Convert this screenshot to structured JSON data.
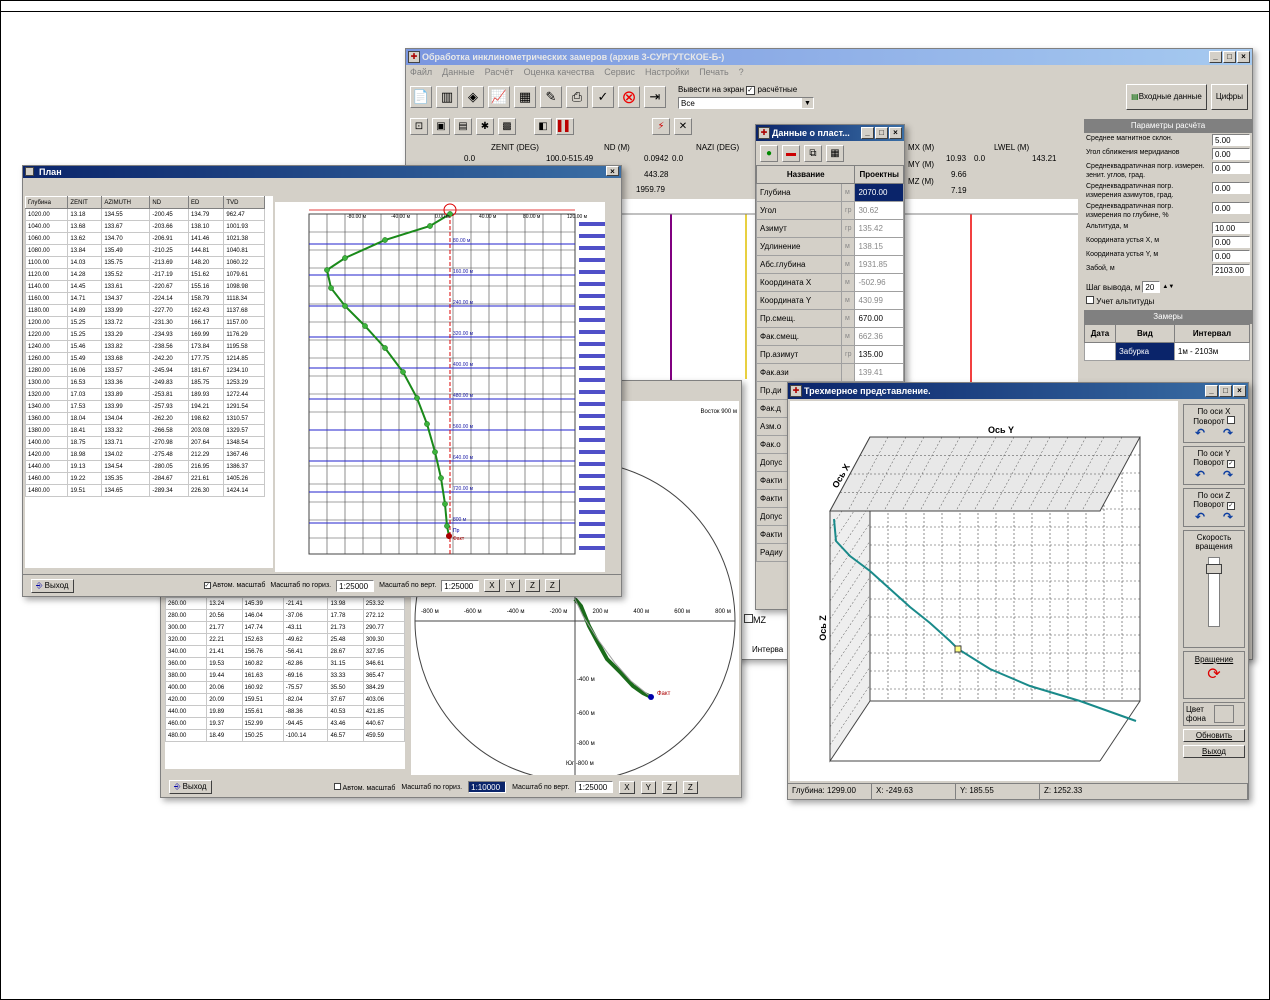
{
  "main_window": {
    "title": "Обработка инклинометрических замеров (архив 3-СУРГУТСКОЕ-Б-)",
    "menu": [
      "Файл",
      "Данные",
      "Расчёт",
      "Оценка качества",
      "Сервис",
      "Настройки",
      "Печать",
      "?"
    ],
    "output_label": "Вывести на экран",
    "calculated_label": "расчётные",
    "select_value": "Все",
    "input_data_button": "Входные данные",
    "digits_button": "Цифры",
    "tracks": [
      {
        "name": "ZENIT (DEG)",
        "min": "0.0",
        "max": "100.0"
      },
      {
        "name": "ND (M)",
        "min": "-515.49",
        "max": "0.0942"
      },
      {
        "name": "NAZI (DEG)",
        "min": "0.0",
        "max": ""
      },
      {
        "name": "MX (M)",
        "min": "",
        "max": "10.93"
      },
      {
        "name": "MY (M)",
        "min": "",
        "max": "9.66"
      },
      {
        "name": "MZ (M)",
        "min": "",
        "max": "7.19"
      },
      {
        "name": "LWEL (M)",
        "min": "0.0",
        "max": "143.21"
      }
    ],
    "nd_values": [
      "443.28",
      "1959.79"
    ],
    "params_title": "Параметры расчёта",
    "params": [
      {
        "label": "Среднее магнитное склон.",
        "value": "5.00"
      },
      {
        "label": "Угол сближения меридианов",
        "value": "0.00"
      },
      {
        "label": "Среднеквадратичная погр. измерен. зенит. углов, град.",
        "value": "0.00"
      },
      {
        "label": "Среднеквадратичная погр. измерения азимутов, град.",
        "value": "0.00"
      },
      {
        "label": "Среднеквадратичная погр. измерения по глубине, %",
        "value": "0.00"
      },
      {
        "label": "Альтитуда, м",
        "value": "10.00"
      },
      {
        "label": "Координата устья X, м",
        "value": "0.00"
      },
      {
        "label": "Координата устья Y, м",
        "value": "0.00"
      },
      {
        "label": "Забой, м",
        "value": "2103.00"
      }
    ],
    "step_label": "Шаг вывода, м",
    "step_value": "20",
    "altitude_check": "Учет альтитуды",
    "measurements_title": "Замеры",
    "meas_headers": [
      "Дата",
      "Вид",
      "Интервал"
    ],
    "meas_row": [
      "",
      "Забурка",
      "1м - 2103м"
    ],
    "mz_label": "MZ",
    "interval_label": "Интерва"
  },
  "data_window": {
    "title": "Данные о пласт...",
    "headers": [
      "Название",
      "Проектны"
    ],
    "rows": [
      {
        "name": "Глубина",
        "unit": "м",
        "value": "2070.00"
      },
      {
        "name": "Угол",
        "unit": "гр",
        "value": "30.62"
      },
      {
        "name": "Азимут",
        "unit": "гр",
        "value": "135.42"
      },
      {
        "name": "Удлинение",
        "unit": "м",
        "value": "138.15"
      },
      {
        "name": "Абс.глубина",
        "unit": "м",
        "value": "1931.85"
      },
      {
        "name": "Координата X",
        "unit": "м",
        "value": "-502.96"
      },
      {
        "name": "Координата Y",
        "unit": "м",
        "value": "430.99"
      },
      {
        "name": "Пр.смещ.",
        "unit": "м",
        "value": "670.00"
      },
      {
        "name": "Фак.смещ.",
        "unit": "м",
        "value": "662.36"
      },
      {
        "name": "Пр.азимут",
        "unit": "гр",
        "value": "135.00"
      },
      {
        "name": "Фак.ази",
        "unit": "",
        "value": "139.41"
      },
      {
        "name": "Пр.ди",
        "unit": "",
        "value": ""
      },
      {
        "name": "Фак.д",
        "unit": "",
        "value": ""
      },
      {
        "name": "Азм.о",
        "unit": "",
        "value": ""
      },
      {
        "name": "Фак.о",
        "unit": "",
        "value": ""
      },
      {
        "name": "Допус",
        "unit": "",
        "value": ""
      },
      {
        "name": "Факти",
        "unit": "",
        "value": ""
      },
      {
        "name": "Факти",
        "unit": "",
        "value": ""
      },
      {
        "name": "Допус",
        "unit": "",
        "value": ""
      },
      {
        "name": "Факти",
        "unit": "",
        "value": ""
      },
      {
        "name": "Радиу",
        "unit": "",
        "value": ""
      }
    ]
  },
  "plan_window": {
    "title": "План",
    "headers": [
      "Глубина",
      "ZENIT",
      "AZIMUTH",
      "ND",
      "ED",
      "TVD"
    ],
    "rows": [
      [
        "1020.00",
        "13.18",
        "134.55",
        "-200.45",
        "134.79",
        "962.47"
      ],
      [
        "1040.00",
        "13.68",
        "133.67",
        "-203.66",
        "138.10",
        "1001.93"
      ],
      [
        "1060.00",
        "13.62",
        "134.70",
        "-206.91",
        "141.46",
        "1021.38"
      ],
      [
        "1080.00",
        "13.84",
        "135.49",
        "-210.25",
        "144.81",
        "1040.81"
      ],
      [
        "1100.00",
        "14.03",
        "135.75",
        "-213.69",
        "148.20",
        "1060.22"
      ],
      [
        "1120.00",
        "14.28",
        "135.52",
        "-217.19",
        "151.62",
        "1079.61"
      ],
      [
        "1140.00",
        "14.45",
        "133.61",
        "-220.67",
        "155.16",
        "1098.98"
      ],
      [
        "1160.00",
        "14.71",
        "134.37",
        "-224.14",
        "158.79",
        "1118.34"
      ],
      [
        "1180.00",
        "14.89",
        "133.99",
        "-227.70",
        "162.43",
        "1137.68"
      ],
      [
        "1200.00",
        "15.25",
        "133.72",
        "-231.30",
        "166.17",
        "1157.00"
      ],
      [
        "1220.00",
        "15.25",
        "133.29",
        "-234.93",
        "169.99",
        "1176.29"
      ],
      [
        "1240.00",
        "15.46",
        "133.82",
        "-238.56",
        "173.84",
        "1195.58"
      ],
      [
        "1260.00",
        "15.49",
        "133.68",
        "-242.20",
        "177.75",
        "1214.85"
      ],
      [
        "1280.00",
        "16.06",
        "133.57",
        "-245.94",
        "181.67",
        "1234.10"
      ],
      [
        "1300.00",
        "16.53",
        "133.36",
        "-249.83",
        "185.75",
        "1253.29"
      ],
      [
        "1320.00",
        "17.03",
        "133.89",
        "-253.81",
        "189.93",
        "1272.44"
      ],
      [
        "1340.00",
        "17.53",
        "133.99",
        "-257.93",
        "194.21",
        "1291.54"
      ],
      [
        "1360.00",
        "18.04",
        "134.04",
        "-262.20",
        "198.62",
        "1310.57"
      ],
      [
        "1380.00",
        "18.41",
        "133.32",
        "-266.58",
        "203.08",
        "1329.57"
      ],
      [
        "1400.00",
        "18.75",
        "133.71",
        "-270.98",
        "207.64",
        "1348.54"
      ],
      [
        "1420.00",
        "18.98",
        "134.02",
        "-275.48",
        "212.29",
        "1367.46"
      ],
      [
        "1440.00",
        "19.13",
        "134.54",
        "-280.05",
        "216.95",
        "1386.37"
      ],
      [
        "1460.00",
        "19.22",
        "135.35",
        "-284.67",
        "221.61",
        "1405.26"
      ],
      [
        "1480.00",
        "19.51",
        "134.65",
        "-289.34",
        "226.30",
        "1424.14"
      ]
    ],
    "exit_button": "Выход",
    "auto_scale": "Автом. масштаб",
    "hscale_label": "Масштаб по гориз.",
    "hscale_value": "1:25000",
    "vscale_label": "Масштаб по верт.",
    "vscale_value": "1:25000",
    "axis_top": [
      "-80.00 м",
      "-40.00 м",
      "0.00 м",
      "40.00 м",
      "80.00 м",
      "120.00 м"
    ],
    "depth_ticks": [
      "80.00 м",
      "160.00 м",
      "240.00 м",
      "320.00 м",
      "400.00 м",
      "480.00 м",
      "560.00 м",
      "640.00 м",
      "720.00 м",
      "800 м"
    ],
    "pr_label": "Пр",
    "fakt_label": "Факт"
  },
  "polar_window": {
    "headers": [],
    "rows": [
      [
        "260.00",
        "13.24",
        "145.39",
        "-21.41",
        "13.98",
        "253.32"
      ],
      [
        "280.00",
        "20.56",
        "146.04",
        "-37.06",
        "17.78",
        "272.12"
      ],
      [
        "300.00",
        "21.77",
        "147.74",
        "-43.11",
        "21.73",
        "290.77"
      ],
      [
        "320.00",
        "22.21",
        "152.63",
        "-49.62",
        "25.48",
        "309.30"
      ],
      [
        "340.00",
        "21.41",
        "156.76",
        "-56.41",
        "28.67",
        "327.95"
      ],
      [
        "360.00",
        "19.53",
        "160.82",
        "-62.86",
        "31.15",
        "346.61"
      ],
      [
        "380.00",
        "19.44",
        "161.63",
        "-69.16",
        "33.33",
        "365.47"
      ],
      [
        "400.00",
        "20.06",
        "160.92",
        "-75.57",
        "35.50",
        "384.29"
      ],
      [
        "420.00",
        "20.09",
        "159.51",
        "-82.04",
        "37.67",
        "403.06"
      ],
      [
        "440.00",
        "19.89",
        "155.61",
        "-88.36",
        "40.53",
        "421.85"
      ],
      [
        "460.00",
        "19.37",
        "152.99",
        "-94.45",
        "43.46",
        "440.67"
      ],
      [
        "480.00",
        "18.49",
        "150.25",
        "-100.14",
        "46.57",
        "459.59"
      ]
    ],
    "exit_button": "Выход",
    "auto_scale": "Автом. масштаб",
    "hscale_label": "Масштаб по гориз.",
    "hscale_value": "1:10000",
    "vscale_label": "Масштаб по верт.",
    "vscale_value": "1:25000",
    "east_label": "Восток 900 м",
    "south_label": "Юг -800 м",
    "axis_labels": [
      "-800 м",
      "-600 м",
      "-400 м",
      "-200 м",
      "200 м",
      "400 м",
      "600 м",
      "800 м"
    ],
    "v_labels": [
      "-400 м",
      "-600 м",
      "-800 м"
    ],
    "fakt_label": "Факт"
  },
  "view3d_window": {
    "title": "Трехмерное представление.",
    "axis_y": "Ось Y",
    "axis_x": "Ось X",
    "axis_z": "Ось Z",
    "rot_x": "По оси X",
    "rot_y": "По оси Y",
    "rot_z": "По оси Z",
    "rotate": "Поворот",
    "speed": "Скорость вращения",
    "rotation_button": "Вращение",
    "bg_color": "Цвет фона",
    "refresh_button": "Обновить",
    "exit_button": "Выход",
    "status": {
      "depth": "Глубина: 1299.00",
      "x": "X: -249.63",
      "y": "Y: 185.55",
      "z": "Z: 1252.33"
    }
  }
}
